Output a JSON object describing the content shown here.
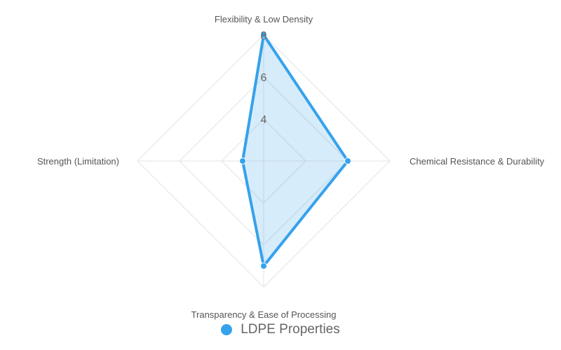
{
  "chart_data": {
    "type": "radar",
    "axes": [
      "Flexibility & Low Density",
      "Chemical Resistance & Durability",
      "Transparency & Ease of Processing",
      "Strength (Limitation)"
    ],
    "r_range": [
      2,
      8
    ],
    "ticks": [
      4,
      6,
      8
    ],
    "grid": true,
    "legend_position": "bottom",
    "series": [
      {
        "name": "LDPE Properties",
        "values": [
          8,
          6,
          7,
          3
        ],
        "color": "#36a2eb",
        "fill": "rgba(54,162,235,0.2)"
      }
    ]
  }
}
